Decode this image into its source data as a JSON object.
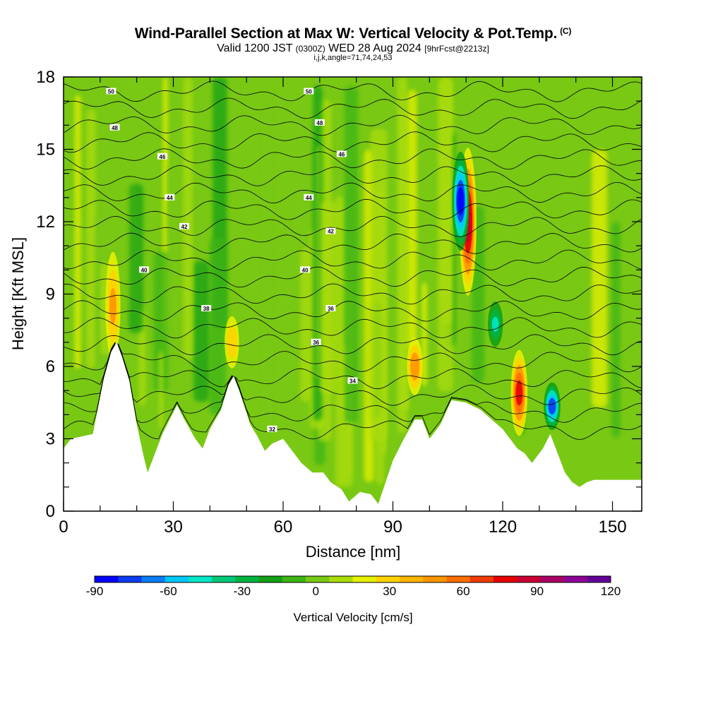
{
  "header": {
    "title": "Wind-Parallel Section at Max W: Vertical Velocity & Pot.Temp.",
    "copyright": "(C)",
    "valid_a": "Valid 1200 JST ",
    "valid_zulu": "(0300Z)",
    "valid_b": " WED 28 Aug 2024 ",
    "forecast": "[9hrFcst@2213z]",
    "indices": "i,j,k,angle=71,74,24,53"
  },
  "chart_data": {
    "type": "heatmap",
    "xlabel": "Distance [nm]",
    "ylabel": "Height [Kft MSL]",
    "xlim": [
      0,
      158
    ],
    "ylim": [
      0,
      18
    ],
    "x_ticks": [
      "0",
      "30",
      "60",
      "90",
      "120",
      "150"
    ],
    "y_ticks": [
      "0",
      "3",
      "6",
      "9",
      "12",
      "15",
      "18"
    ],
    "colorbar": {
      "label": "Vertical Velocity [cm/s]",
      "ticks": [
        "-90",
        "-60",
        "-30",
        "0",
        "30",
        "60",
        "90",
        "120"
      ],
      "min": -90,
      "max": 120,
      "colors": [
        "#0000ff",
        "#0a3cf0",
        "#0a7cf5",
        "#00c8ff",
        "#00e6c8",
        "#00c878",
        "#00b440",
        "#14a014",
        "#3cb414",
        "#78c814",
        "#aadc0a",
        "#e6f000",
        "#ffd200",
        "#ffb400",
        "#ff9600",
        "#ff6e00",
        "#f03c00",
        "#e60000",
        "#c80032",
        "#aa0064",
        "#8c0096",
        "#640096"
      ]
    },
    "terrain_kft": [
      [
        0,
        2.6
      ],
      [
        2,
        3
      ],
      [
        8,
        3.2
      ],
      [
        11,
        5.5
      ],
      [
        13,
        6.6
      ],
      [
        14.5,
        7
      ],
      [
        16,
        6.4
      ],
      [
        18,
        5.4
      ],
      [
        20,
        3.6
      ],
      [
        22,
        2.2
      ],
      [
        23,
        1.6
      ],
      [
        25,
        2.4
      ],
      [
        27,
        3.2
      ],
      [
        29,
        3.8
      ],
      [
        31,
        4.4
      ],
      [
        33,
        3.8
      ],
      [
        36,
        3.0
      ],
      [
        38,
        2.6
      ],
      [
        40,
        3.4
      ],
      [
        43,
        4.2
      ],
      [
        45,
        5.2
      ],
      [
        46.5,
        5.6
      ],
      [
        48,
        5.0
      ],
      [
        51,
        3.6
      ],
      [
        53,
        3.1
      ],
      [
        55,
        2.5
      ],
      [
        57,
        2.8
      ],
      [
        60,
        3.0
      ],
      [
        62,
        2.6
      ],
      [
        65,
        2.0
      ],
      [
        68,
        1.6
      ],
      [
        71,
        1.6
      ],
      [
        73,
        1.2
      ],
      [
        76,
        0.9
      ],
      [
        78,
        0.4
      ],
      [
        81,
        0.8
      ],
      [
        84,
        0.7
      ],
      [
        86,
        0.3
      ],
      [
        88,
        1.2
      ],
      [
        90,
        2.1
      ],
      [
        93,
        3.0
      ],
      [
        96,
        3.8
      ],
      [
        98,
        3.8
      ],
      [
        100,
        3.0
      ],
      [
        103,
        3.6
      ],
      [
        106,
        4.6
      ],
      [
        110,
        4.5
      ],
      [
        114,
        4.2
      ],
      [
        117,
        3.8
      ],
      [
        120,
        3.4
      ],
      [
        122,
        3.0
      ],
      [
        124,
        2.6
      ],
      [
        126,
        2.4
      ],
      [
        128,
        2.0
      ],
      [
        131,
        2.6
      ],
      [
        133,
        3.2
      ],
      [
        135,
        2.4
      ],
      [
        137,
        1.6
      ],
      [
        139,
        1.2
      ],
      [
        141,
        1.0
      ],
      [
        143,
        1.2
      ],
      [
        145,
        1.3
      ],
      [
        158,
        1.3
      ]
    ],
    "theta_contours": [
      {
        "label": "32",
        "h": 3.4,
        "label_x": 57
      },
      {
        "label": "34",
        "h": 5.4,
        "label_x": 79
      },
      {
        "label": "36",
        "h": 7.0,
        "label_x": 69
      },
      {
        "label": "36",
        "h": 8.4,
        "label_x": 73
      },
      {
        "label": "38",
        "h": 8.4,
        "label_x": 39
      },
      {
        "label": "40",
        "h": 10.0,
        "label_x": 66
      },
      {
        "label": "40",
        "h": 10.0,
        "label_x": 22
      },
      {
        "label": "42",
        "h": 11.6,
        "label_x": 73
      },
      {
        "label": "42",
        "h": 11.8,
        "label_x": 33
      },
      {
        "label": "44",
        "h": 13.0,
        "label_x": 67
      },
      {
        "label": "44",
        "h": 13.0,
        "label_x": 29
      },
      {
        "label": "46",
        "h": 14.8,
        "label_x": 76
      },
      {
        "label": "46",
        "h": 14.7,
        "label_x": 27
      },
      {
        "label": "48",
        "h": 16.1,
        "label_x": 70
      },
      {
        "label": "48",
        "h": 15.9,
        "label_x": 14
      },
      {
        "label": "50",
        "h": 17.4,
        "label_x": 67
      },
      {
        "label": "50",
        "h": 17.4,
        "label_x": 13
      }
    ],
    "updraft_cores": [
      {
        "x": 110.5,
        "h_bottom": 8.5,
        "h_top": 15.5,
        "w_max": 90
      },
      {
        "x": 124.5,
        "h_bottom": 2.8,
        "h_top": 7.0,
        "w_max": 75
      },
      {
        "x": 13.5,
        "h_bottom": 5.5,
        "h_top": 11.5,
        "w_max": 45
      },
      {
        "x": 46,
        "h_bottom": 5.5,
        "h_top": 8.5,
        "w_max": 40
      },
      {
        "x": 96,
        "h_bottom": 4.5,
        "h_top": 7.5,
        "w_max": 55
      }
    ],
    "downdraft_cores": [
      {
        "x": 108.5,
        "h_bottom": 10.5,
        "h_top": 15.2,
        "w_min": -90
      },
      {
        "x": 133.5,
        "h_bottom": 3.2,
        "h_top": 5.5,
        "w_min": -80
      },
      {
        "x": 118,
        "h_bottom": 6.5,
        "h_top": 9.0,
        "w_min": -45
      }
    ]
  }
}
